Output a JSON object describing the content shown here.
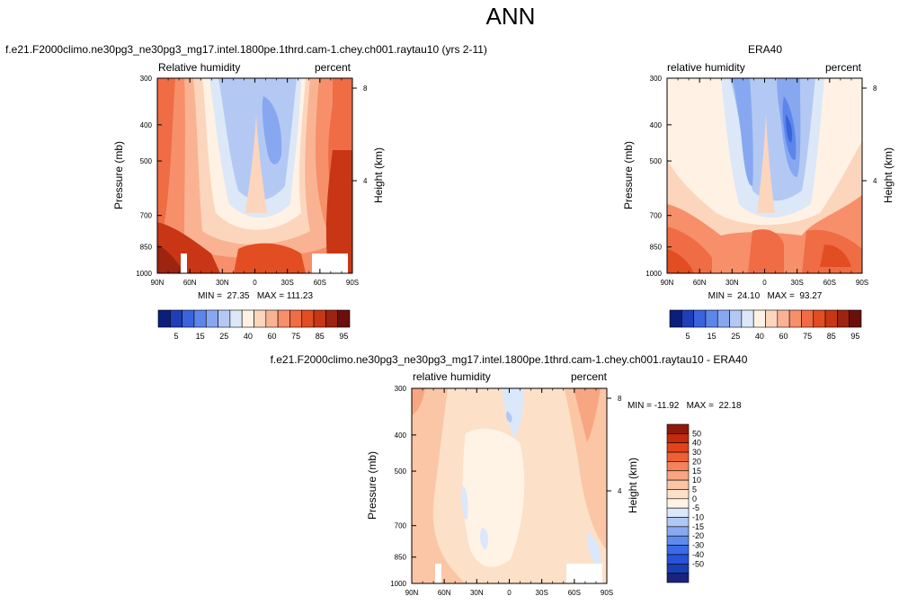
{
  "page_title": "ANN",
  "colors": {
    "rh_scale": [
      "#0b1f7a",
      "#1f3eb8",
      "#3a63de",
      "#5c86ea",
      "#87a8f0",
      "#b3c9f4",
      "#dce8f7",
      "#fff2e4",
      "#fcd5bd",
      "#f9b392",
      "#f68f6a",
      "#ef6c44",
      "#e24d22",
      "#c83615",
      "#9c2410",
      "#6b0f0c"
    ],
    "diff_scale": [
      "#1a237e",
      "#1a3fb0",
      "#2852d8",
      "#3a6ae8",
      "#5d8ced",
      "#86a9f1",
      "#b0c8f5",
      "#dbe8fb",
      "#fff3e6",
      "#fde0c8",
      "#fbc6a5",
      "#f8a581",
      "#f5825a",
      "#ef5f34",
      "#e2431c",
      "#c42b0e",
      "#8f1a0b"
    ],
    "white": "#ffffff"
  },
  "chart_data": [
    {
      "type": "heatmap",
      "title": "f.e21.F2000climo.ne30pg3_ne30pg3_mg17.intel.1800pe.1thrd.cam-1.chey.ch001.raytau10 (yrs 2-11)",
      "subtitle_left": "Relative humidity",
      "subtitle_right": "percent",
      "ylabel": "Pressure (mb)",
      "ylabel_right": "Height (km)",
      "x_ticks": [
        "90N",
        "60N",
        "30N",
        "0",
        "30S",
        "60S",
        "90S"
      ],
      "y_ticks": [
        "300",
        "400",
        "500",
        "700",
        "850",
        "1000"
      ],
      "y_right_ticks": [
        "8",
        "4"
      ],
      "stats": "MIN =  27.35   MAX = 111.23",
      "colorbar_labels": [
        "5",
        "15",
        "25",
        "40",
        "60",
        "75",
        "85",
        "95"
      ],
      "ylim": [
        1000,
        300
      ],
      "xlim": [
        90,
        -90
      ]
    },
    {
      "type": "heatmap",
      "title": "ERA40",
      "subtitle_left": "relative humidity",
      "subtitle_right": "percent",
      "ylabel": "Pressure (mb)",
      "ylabel_right": "Height (km)",
      "x_ticks": [
        "90N",
        "60N",
        "30N",
        "0",
        "30S",
        "60S",
        "90S"
      ],
      "y_ticks": [
        "300",
        "400",
        "500",
        "700",
        "850",
        "1000"
      ],
      "y_right_ticks": [
        "8",
        "4"
      ],
      "stats": "MIN =  24.10   MAX =  93.27",
      "colorbar_labels": [
        "5",
        "15",
        "25",
        "40",
        "60",
        "75",
        "85",
        "95"
      ],
      "ylim": [
        1000,
        300
      ],
      "xlim": [
        90,
        -90
      ]
    },
    {
      "type": "heatmap",
      "title": "f.e21.F2000climo.ne30pg3_ne30pg3_mg17.intel.1800pe.1thrd.cam-1.chey.ch001.raytau10 - ERA40",
      "subtitle_left": "relative humidity",
      "subtitle_right": "percent",
      "ylabel": "Pressure (mb)",
      "ylabel_right": "Height (km)",
      "x_ticks": [
        "90N",
        "60N",
        "30N",
        "0",
        "30S",
        "60S",
        "90S"
      ],
      "y_ticks": [
        "300",
        "400",
        "500",
        "700",
        "850",
        "1000"
      ],
      "y_right_ticks": [
        "8",
        "4"
      ],
      "stats": "MIN = -11.92   MAX =  22.18",
      "colorbar_labels": [
        "50",
        "40",
        "30",
        "20",
        "15",
        "10",
        "5",
        "0",
        "-5",
        "-10",
        "-15",
        "-20",
        "-30",
        "-40",
        "-50"
      ],
      "ylim": [
        1000,
        300
      ],
      "xlim": [
        90,
        -90
      ]
    }
  ]
}
